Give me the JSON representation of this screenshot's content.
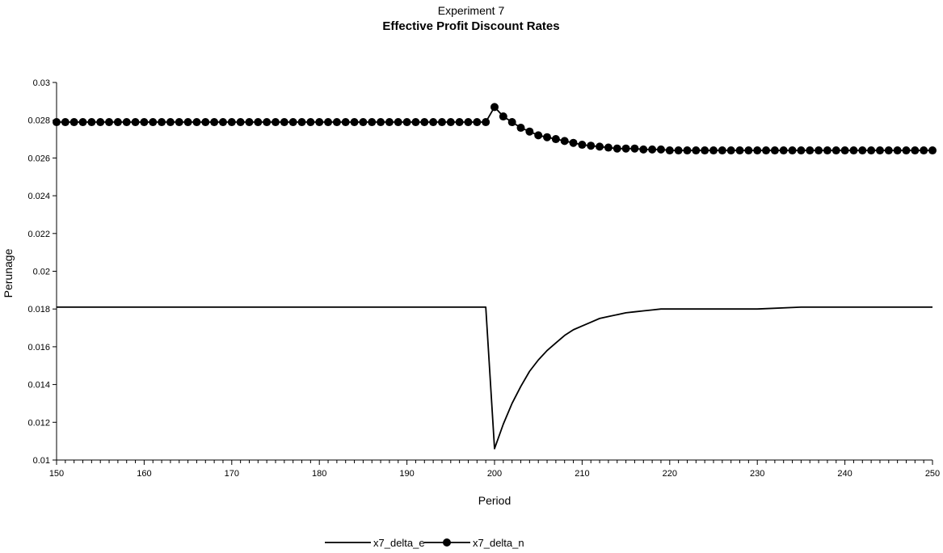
{
  "chart_data": {
    "type": "line",
    "title": "Experiment 7",
    "subtitle": "Effective Profit Discount Rates",
    "xlabel": "Period",
    "ylabel": "Perunage",
    "xlim": [
      150,
      250
    ],
    "ylim": [
      0.01,
      0.03
    ],
    "xticks": [
      "150",
      "160",
      "170",
      "180",
      "190",
      "200",
      "210",
      "220",
      "230",
      "240",
      "250"
    ],
    "yticks": [
      "0.01",
      "0.012",
      "0.014",
      "0.016",
      "0.018",
      "0.02",
      "0.022",
      "0.024",
      "0.026",
      "0.028",
      "0.03"
    ],
    "legend": "bottom-center",
    "grid": false,
    "series": [
      {
        "name": "x7_delta_e",
        "marker": "none",
        "color": "#000000",
        "x": [
          150,
          199,
          200,
          201,
          202,
          203,
          204,
          205,
          206,
          207,
          208,
          209,
          210,
          211,
          212,
          213,
          214,
          215,
          216,
          217,
          218,
          219,
          220,
          222,
          224,
          226,
          228,
          230,
          235,
          240,
          250
        ],
        "y": [
          0.0181,
          0.0181,
          0.0106,
          0.0119,
          0.013,
          0.0139,
          0.0147,
          0.0153,
          0.0158,
          0.0162,
          0.0166,
          0.0169,
          0.0171,
          0.0173,
          0.0175,
          0.0176,
          0.0177,
          0.0178,
          0.01785,
          0.0179,
          0.01795,
          0.018,
          0.018,
          0.018,
          0.018,
          0.018,
          0.018,
          0.018,
          0.0181,
          0.0181,
          0.0181
        ]
      },
      {
        "name": "x7_delta_n",
        "marker": "circle",
        "color": "#000000",
        "x": [
          150,
          151,
          152,
          153,
          154,
          155,
          156,
          157,
          158,
          159,
          160,
          161,
          162,
          163,
          164,
          165,
          166,
          167,
          168,
          169,
          170,
          171,
          172,
          173,
          174,
          175,
          176,
          177,
          178,
          179,
          180,
          181,
          182,
          183,
          184,
          185,
          186,
          187,
          188,
          189,
          190,
          191,
          192,
          193,
          194,
          195,
          196,
          197,
          198,
          199,
          200,
          201,
          202,
          203,
          204,
          205,
          206,
          207,
          208,
          209,
          210,
          211,
          212,
          213,
          214,
          215,
          216,
          217,
          218,
          219,
          220,
          221,
          222,
          223,
          224,
          225,
          226,
          227,
          228,
          229,
          230,
          231,
          232,
          233,
          234,
          235,
          236,
          237,
          238,
          239,
          240,
          241,
          242,
          243,
          244,
          245,
          246,
          247,
          248,
          249,
          250
        ],
        "y": [
          0.0279,
          0.0279,
          0.0279,
          0.0279,
          0.0279,
          0.0279,
          0.0279,
          0.0279,
          0.0279,
          0.0279,
          0.0279,
          0.0279,
          0.0279,
          0.0279,
          0.0279,
          0.0279,
          0.0279,
          0.0279,
          0.0279,
          0.0279,
          0.0279,
          0.0279,
          0.0279,
          0.0279,
          0.0279,
          0.0279,
          0.0279,
          0.0279,
          0.0279,
          0.0279,
          0.0279,
          0.0279,
          0.0279,
          0.0279,
          0.0279,
          0.0279,
          0.0279,
          0.0279,
          0.0279,
          0.0279,
          0.0279,
          0.0279,
          0.0279,
          0.0279,
          0.0279,
          0.0279,
          0.0279,
          0.0279,
          0.0279,
          0.0279,
          0.0287,
          0.0282,
          0.0279,
          0.0276,
          0.0274,
          0.0272,
          0.0271,
          0.027,
          0.0269,
          0.0268,
          0.0267,
          0.02665,
          0.0266,
          0.02655,
          0.0265,
          0.0265,
          0.0265,
          0.02645,
          0.02645,
          0.02645,
          0.0264,
          0.0264,
          0.0264,
          0.0264,
          0.0264,
          0.0264,
          0.0264,
          0.0264,
          0.0264,
          0.0264,
          0.0264,
          0.0264,
          0.0264,
          0.0264,
          0.0264,
          0.0264,
          0.0264,
          0.0264,
          0.0264,
          0.0264,
          0.0264,
          0.0264,
          0.0264,
          0.0264,
          0.0264,
          0.0264,
          0.0264,
          0.0264,
          0.0264,
          0.0264,
          0.0264
        ]
      }
    ]
  }
}
